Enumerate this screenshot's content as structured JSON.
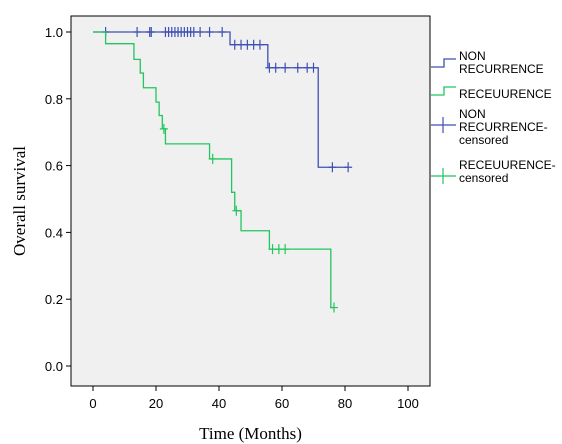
{
  "chart_data": {
    "type": "line",
    "subtype": "kaplan-meier",
    "title": "",
    "xlabel": "Time (Months)",
    "ylabel": "Overall survival",
    "xlim": [
      0,
      100
    ],
    "ylim": [
      0.0,
      1.0
    ],
    "xticks": [
      "0",
      "20",
      "40",
      "60",
      "80",
      "100"
    ],
    "yticks": [
      "0.0",
      "0.2",
      "0.4",
      "0.6",
      "0.8",
      "1.0"
    ],
    "grid": false,
    "background": "#f0f0f0",
    "legend_position": "right",
    "series": [
      {
        "name": "NON RECURRENCE",
        "color": "#3f51b5",
        "steps": [
          [
            0,
            1.0
          ],
          [
            43.5,
            0.962
          ],
          [
            55.5,
            0.893
          ],
          [
            71.5,
            0.595
          ],
          [
            81,
            0.595
          ]
        ],
        "censored": [
          [
            4,
            1.0
          ],
          [
            14,
            1.0
          ],
          [
            18,
            1.0
          ],
          [
            18.5,
            1.0
          ],
          [
            23,
            1.0
          ],
          [
            24,
            1.0
          ],
          [
            25,
            1.0
          ],
          [
            26,
            1.0
          ],
          [
            27,
            1.0
          ],
          [
            28,
            1.0
          ],
          [
            29,
            1.0
          ],
          [
            30,
            1.0
          ],
          [
            31,
            1.0
          ],
          [
            32,
            1.0
          ],
          [
            34,
            1.0
          ],
          [
            37,
            1.0
          ],
          [
            41,
            1.0
          ],
          [
            45,
            0.962
          ],
          [
            47,
            0.962
          ],
          [
            49,
            0.962
          ],
          [
            51,
            0.962
          ],
          [
            53,
            0.962
          ],
          [
            56,
            0.893
          ],
          [
            58,
            0.893
          ],
          [
            61,
            0.893
          ],
          [
            65,
            0.893
          ],
          [
            68,
            0.893
          ],
          [
            70,
            0.893
          ],
          [
            76,
            0.595
          ],
          [
            81,
            0.595
          ]
        ]
      },
      {
        "name": "RECEUURENCE",
        "color": "#22c55e",
        "steps": [
          [
            0,
            1.0
          ],
          [
            4,
            0.965
          ],
          [
            13,
            0.918
          ],
          [
            15,
            0.877
          ],
          [
            16,
            0.833
          ],
          [
            20,
            0.79
          ],
          [
            21,
            0.75
          ],
          [
            22,
            0.71
          ],
          [
            23,
            0.665
          ],
          [
            37,
            0.62
          ],
          [
            44,
            0.52
          ],
          [
            45,
            0.465
          ],
          [
            47,
            0.405
          ],
          [
            56,
            0.35
          ],
          [
            75.5,
            0.175
          ],
          [
            76.5,
            0.175
          ]
        ],
        "censored": [
          [
            22.5,
            0.71
          ],
          [
            38,
            0.62
          ],
          [
            45.5,
            0.465
          ],
          [
            57,
            0.35
          ],
          [
            59,
            0.35
          ],
          [
            61,
            0.35
          ],
          [
            76.5,
            0.175
          ]
        ]
      }
    ],
    "legend": [
      {
        "lines": [
          "NON",
          "RECURRENCE"
        ],
        "symbol": "step",
        "color": "#3f51b5"
      },
      {
        "lines": [
          "RECEUURENCE"
        ],
        "symbol": "step",
        "color": "#22c55e"
      },
      {
        "lines": [
          "NON",
          "RECURRENCE-",
          "censored"
        ],
        "symbol": "cross",
        "color": "#3f51b5"
      },
      {
        "lines": [
          "RECEUURENCE-",
          "censored"
        ],
        "symbol": "cross",
        "color": "#22c55e"
      }
    ]
  }
}
